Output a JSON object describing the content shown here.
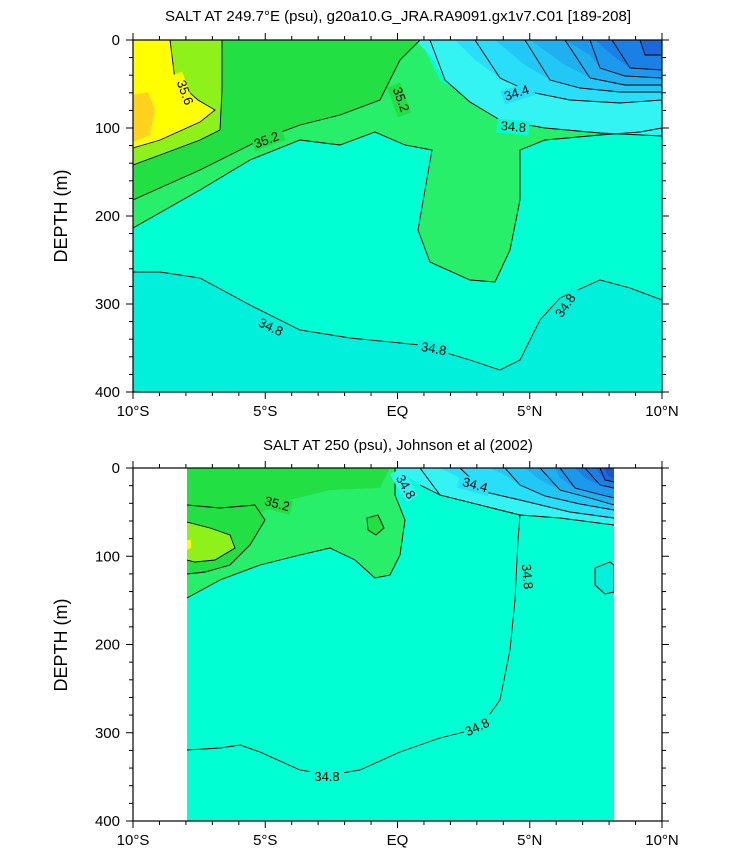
{
  "chart_data": [
    {
      "type": "contour",
      "title": "SALT AT 249.7°E (psu), g20a10.G_JRA.RA9091.gx1v7.C01 [189-208]",
      "ylabel": "DEPTH (m)",
      "xlabel": "",
      "x_ticks": [
        "10°S",
        "5°S",
        "EQ",
        "5°N",
        "10°N"
      ],
      "y_ticks": [
        "0",
        "100",
        "200",
        "300",
        "400"
      ],
      "xlim": [
        -10,
        10
      ],
      "ylim": [
        400,
        0
      ],
      "contour_labels": [
        "35.6",
        "35.2",
        "35.2",
        "34.4",
        "34.8",
        "34.8",
        "34.8",
        "34.8"
      ],
      "levels": [
        34.0,
        34.2,
        34.4,
        34.6,
        34.8,
        35.0,
        35.2,
        35.4,
        35.6,
        35.8
      ],
      "colors": [
        "#1f6fe0",
        "#1f8fec",
        "#28b4f2",
        "#32d8f8",
        "#3ff2f2",
        "#00ffe0",
        "#00ffb0",
        "#22ee55",
        "#8ef21a",
        "#ffff00",
        "#ffd21e"
      ]
    },
    {
      "type": "contour",
      "title": "SALT AT 250 (psu), Johnson et al (2002)",
      "ylabel": "DEPTH (m)",
      "xlabel": "",
      "x_ticks": [
        "10°S",
        "5°S",
        "EQ",
        "5°N",
        "10°N"
      ],
      "y_ticks": [
        "0",
        "100",
        "200",
        "300",
        "400"
      ],
      "xlim": [
        -10,
        10
      ],
      "ylim": [
        400,
        0
      ],
      "data_extent_x": [
        -8,
        8.2
      ],
      "contour_labels": [
        "35.2",
        "34.8",
        "34.4",
        "34.8",
        "34.8",
        "34.8"
      ]
    }
  ]
}
